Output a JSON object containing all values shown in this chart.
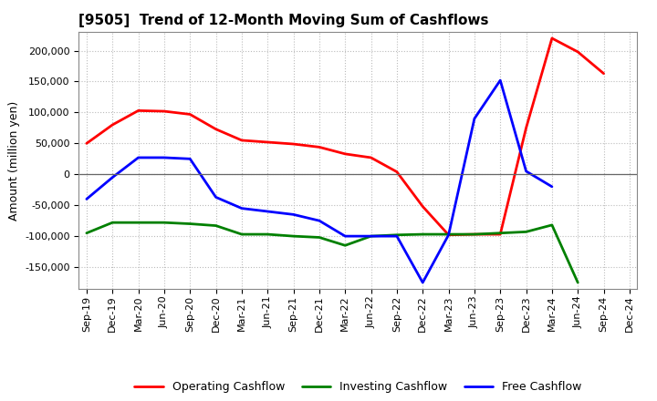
{
  "title": "[9505]  Trend of 12-Month Moving Sum of Cashflows",
  "ylabel": "Amount (million yen)",
  "x_labels": [
    "Sep-19",
    "Dec-19",
    "Mar-20",
    "Jun-20",
    "Sep-20",
    "Dec-20",
    "Mar-21",
    "Jun-21",
    "Sep-21",
    "Dec-21",
    "Mar-22",
    "Jun-22",
    "Sep-22",
    "Dec-22",
    "Mar-23",
    "Jun-23",
    "Sep-23",
    "Dec-23",
    "Mar-24",
    "Jun-24",
    "Sep-24",
    "Dec-24"
  ],
  "operating": [
    50000,
    80000,
    103000,
    102000,
    97000,
    73000,
    55000,
    52000,
    49000,
    44000,
    33000,
    27000,
    4000,
    -52000,
    -98000,
    -97000,
    -97000,
    75000,
    220000,
    198000,
    163000,
    null
  ],
  "investing": [
    -95000,
    -78000,
    -78000,
    -78000,
    -80000,
    -83000,
    -97000,
    -97000,
    -100000,
    -102000,
    -115000,
    -100000,
    -98000,
    -97000,
    -97000,
    -97000,
    -95000,
    -93000,
    -82000,
    -175000,
    null,
    null
  ],
  "free": [
    -40000,
    -5000,
    27000,
    27000,
    25000,
    -37000,
    -55000,
    -60000,
    -65000,
    -75000,
    -100000,
    -100000,
    -100000,
    -175000,
    -98000,
    90000,
    152000,
    5000,
    -20000,
    null,
    null,
    null
  ],
  "ylim_min": -175000,
  "ylim_max": 230000,
  "yticks": [
    -150000,
    -100000,
    -50000,
    0,
    50000,
    100000,
    150000,
    200000
  ],
  "operating_color": "#ff0000",
  "investing_color": "#008000",
  "free_color": "#0000ff",
  "bg_color": "#ffffff",
  "grid_color": "#bbbbbb",
  "title_fontsize": 11,
  "axis_fontsize": 8,
  "legend_fontsize": 9
}
